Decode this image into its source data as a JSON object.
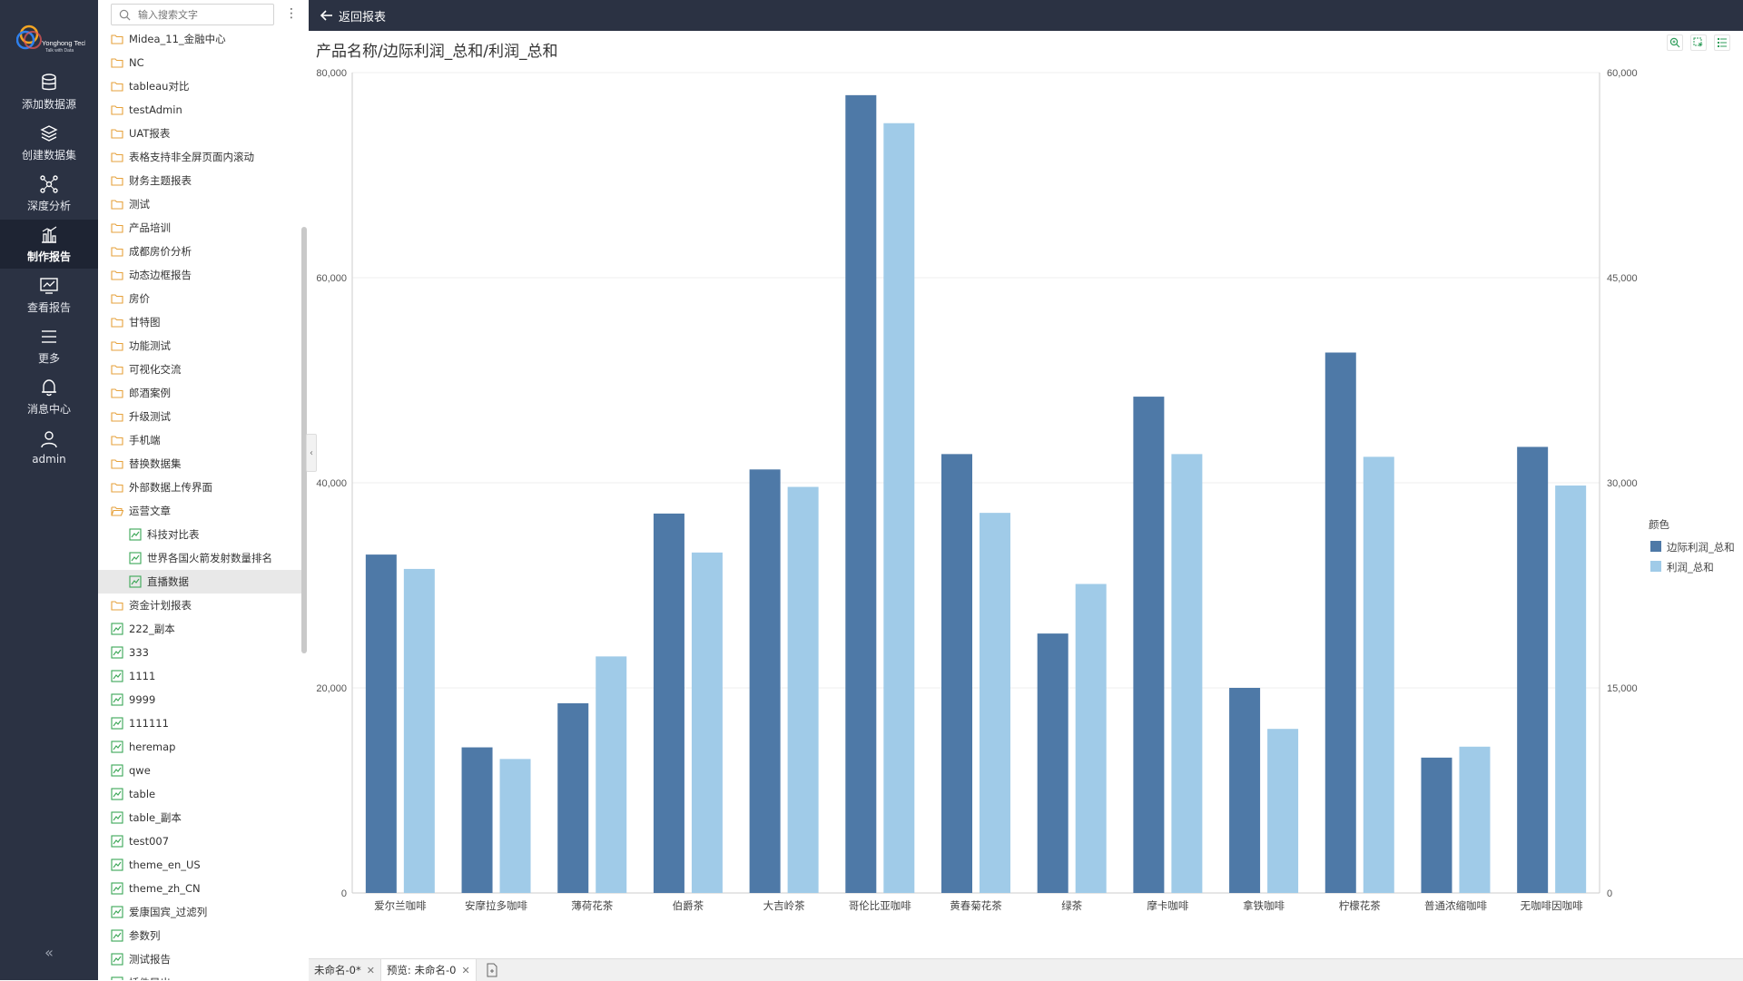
{
  "nav": {
    "items": [
      {
        "label": "添加数据源",
        "icon": "database-icon"
      },
      {
        "label": "创建数据集",
        "icon": "layers-icon"
      },
      {
        "label": "深度分析",
        "icon": "network-icon"
      },
      {
        "label": "制作报告",
        "icon": "bar-chart-icon"
      },
      {
        "label": "查看报告",
        "icon": "monitor-chart-icon"
      },
      {
        "label": "更多",
        "icon": "menu-icon"
      },
      {
        "label": "消息中心",
        "icon": "bell-icon"
      },
      {
        "label": "admin",
        "icon": "user-icon"
      }
    ],
    "active_index": 3,
    "logo_text": "Yonghong Tech",
    "logo_sub": "Talk with Data"
  },
  "tree": {
    "search_placeholder": "输入搜索文字",
    "items": [
      {
        "label": "Midea_11_金融中心",
        "type": "folder",
        "indent": 0
      },
      {
        "label": "NC",
        "type": "folder",
        "indent": 0
      },
      {
        "label": "tableau对比",
        "type": "folder",
        "indent": 0
      },
      {
        "label": "testAdmin",
        "type": "folder",
        "indent": 0
      },
      {
        "label": "UAT报表",
        "type": "folder",
        "indent": 0
      },
      {
        "label": "表格支持非全屏页面内滚动",
        "type": "folder",
        "indent": 0
      },
      {
        "label": "财务主题报表",
        "type": "folder",
        "indent": 0
      },
      {
        "label": "测试",
        "type": "folder",
        "indent": 0
      },
      {
        "label": "产品培训",
        "type": "folder",
        "indent": 0
      },
      {
        "label": "成都房价分析",
        "type": "folder",
        "indent": 0
      },
      {
        "label": "动态边框报告",
        "type": "folder",
        "indent": 0
      },
      {
        "label": "房价",
        "type": "folder",
        "indent": 0
      },
      {
        "label": "甘特图",
        "type": "folder",
        "indent": 0
      },
      {
        "label": "功能测试",
        "type": "folder",
        "indent": 0
      },
      {
        "label": "可视化交流",
        "type": "folder",
        "indent": 0
      },
      {
        "label": "郎酒案例",
        "type": "folder",
        "indent": 0
      },
      {
        "label": "升级测试",
        "type": "folder",
        "indent": 0
      },
      {
        "label": "手机端",
        "type": "folder",
        "indent": 0
      },
      {
        "label": "替换数据集",
        "type": "folder",
        "indent": 0
      },
      {
        "label": "外部数据上传界面",
        "type": "folder",
        "indent": 0
      },
      {
        "label": "运营文章",
        "type": "folder-open",
        "indent": 0
      },
      {
        "label": "科技对比表",
        "type": "report",
        "indent": 1
      },
      {
        "label": "世界各国火箭发射数量排名",
        "type": "report",
        "indent": 1
      },
      {
        "label": "直播数据",
        "type": "report",
        "indent": 1,
        "selected": true
      },
      {
        "label": "资金计划报表",
        "type": "folder",
        "indent": 0
      },
      {
        "label": "222_副本",
        "type": "report",
        "indent": 0
      },
      {
        "label": "333",
        "type": "report",
        "indent": 0
      },
      {
        "label": "1111",
        "type": "report",
        "indent": 0
      },
      {
        "label": "9999",
        "type": "report",
        "indent": 0
      },
      {
        "label": "111111",
        "type": "report",
        "indent": 0
      },
      {
        "label": "heremap",
        "type": "report",
        "indent": 0
      },
      {
        "label": "qwe",
        "type": "report",
        "indent": 0
      },
      {
        "label": "table",
        "type": "report",
        "indent": 0
      },
      {
        "label": "table_副本",
        "type": "report",
        "indent": 0
      },
      {
        "label": "test007",
        "type": "report",
        "indent": 0
      },
      {
        "label": "theme_en_US",
        "type": "report",
        "indent": 0
      },
      {
        "label": "theme_zh_CN",
        "type": "report",
        "indent": 0
      },
      {
        "label": "爱康国宾_过滤列",
        "type": "report",
        "indent": 0
      },
      {
        "label": "参数列",
        "type": "report",
        "indent": 0
      },
      {
        "label": "测试报告",
        "type": "report",
        "indent": 0
      },
      {
        "label": "插件导出",
        "type": "report",
        "indent": 0
      }
    ]
  },
  "topbar": {
    "back_label": "返回报表"
  },
  "chart_title": "产品名称/边际利润_总和/利润_总和",
  "chart_data": {
    "type": "bar",
    "title": "产品名称/边际利润_总和/利润_总和",
    "categories": [
      "爱尔兰咖啡",
      "安摩拉多咖啡",
      "薄荷花茶",
      "伯爵茶",
      "大吉岭茶",
      "哥伦比亚咖啡",
      "黄春菊花茶",
      "绿茶",
      "摩卡咖啡",
      "拿铁咖啡",
      "柠檬花茶",
      "普通浓缩咖啡",
      "无咖啡因咖啡"
    ],
    "series": [
      {
        "name": "边际利润_总和",
        "axis": "left",
        "color": "#4e79a7",
        "values": [
          33000,
          14200,
          18500,
          37000,
          41300,
          77800,
          42800,
          25300,
          48400,
          20000,
          52700,
          13200,
          43500
        ]
      },
      {
        "name": "利润_总和",
        "axis": "right",
        "color": "#a0cbe8",
        "values": [
          23700,
          9800,
          17300,
          24900,
          29700,
          56300,
          27800,
          22600,
          32100,
          12000,
          31900,
          10700,
          29800
        ]
      }
    ],
    "y_left": {
      "min": 0,
      "max": 80000,
      "ticks": [
        "0",
        "20,000",
        "40,000",
        "60,000",
        "80,000"
      ]
    },
    "y_right": {
      "min": 0,
      "max": 60000,
      "ticks": [
        "0",
        "15,000",
        "30,000",
        "45,000",
        "60,000"
      ]
    },
    "legend": {
      "title": "颜色",
      "position": "right"
    },
    "grid": true
  },
  "tabs": [
    {
      "label": "未命名-0*"
    },
    {
      "label": "预览: 未命名-0"
    }
  ]
}
